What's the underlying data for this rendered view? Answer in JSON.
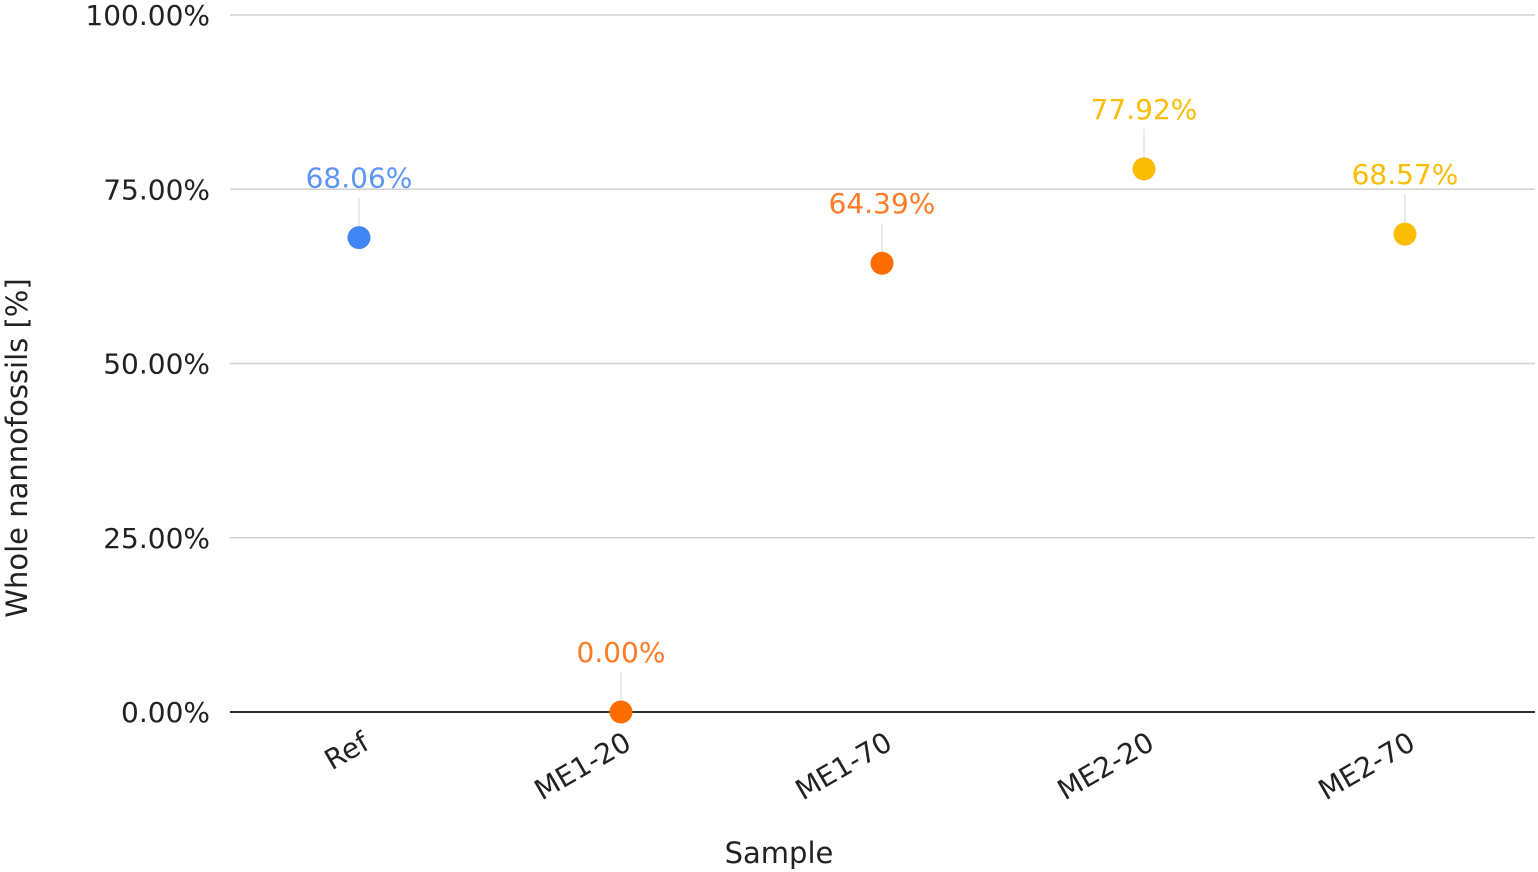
{
  "chart_data": {
    "type": "scatter",
    "title": "",
    "xlabel": "Sample",
    "ylabel": "Whole nannofossils [%]",
    "ylim": [
      0,
      100
    ],
    "yticks": [
      0,
      25,
      50,
      75,
      100
    ],
    "ytick_labels": [
      "0.00%",
      "25.00%",
      "50.00%",
      "75.00%",
      "100.00%"
    ],
    "categories": [
      "Ref",
      "ME1-20",
      "ME1-70",
      "ME2-20",
      "ME2-70"
    ],
    "values": [
      68.06,
      0.0,
      64.39,
      77.92,
      68.57
    ],
    "value_labels": [
      "68.06%",
      "0.00%",
      "64.39%",
      "77.92%",
      "68.57%"
    ],
    "point_colors": [
      "#4285f4",
      "#ff6d01",
      "#ff6d01",
      "#fbbc04",
      "#fbbc04"
    ],
    "label_colors": [
      "#5b95f5",
      "#ff7a24",
      "#ff7a24",
      "#fbbc04",
      "#fbbc04"
    ],
    "grid": true,
    "legend": "none"
  }
}
